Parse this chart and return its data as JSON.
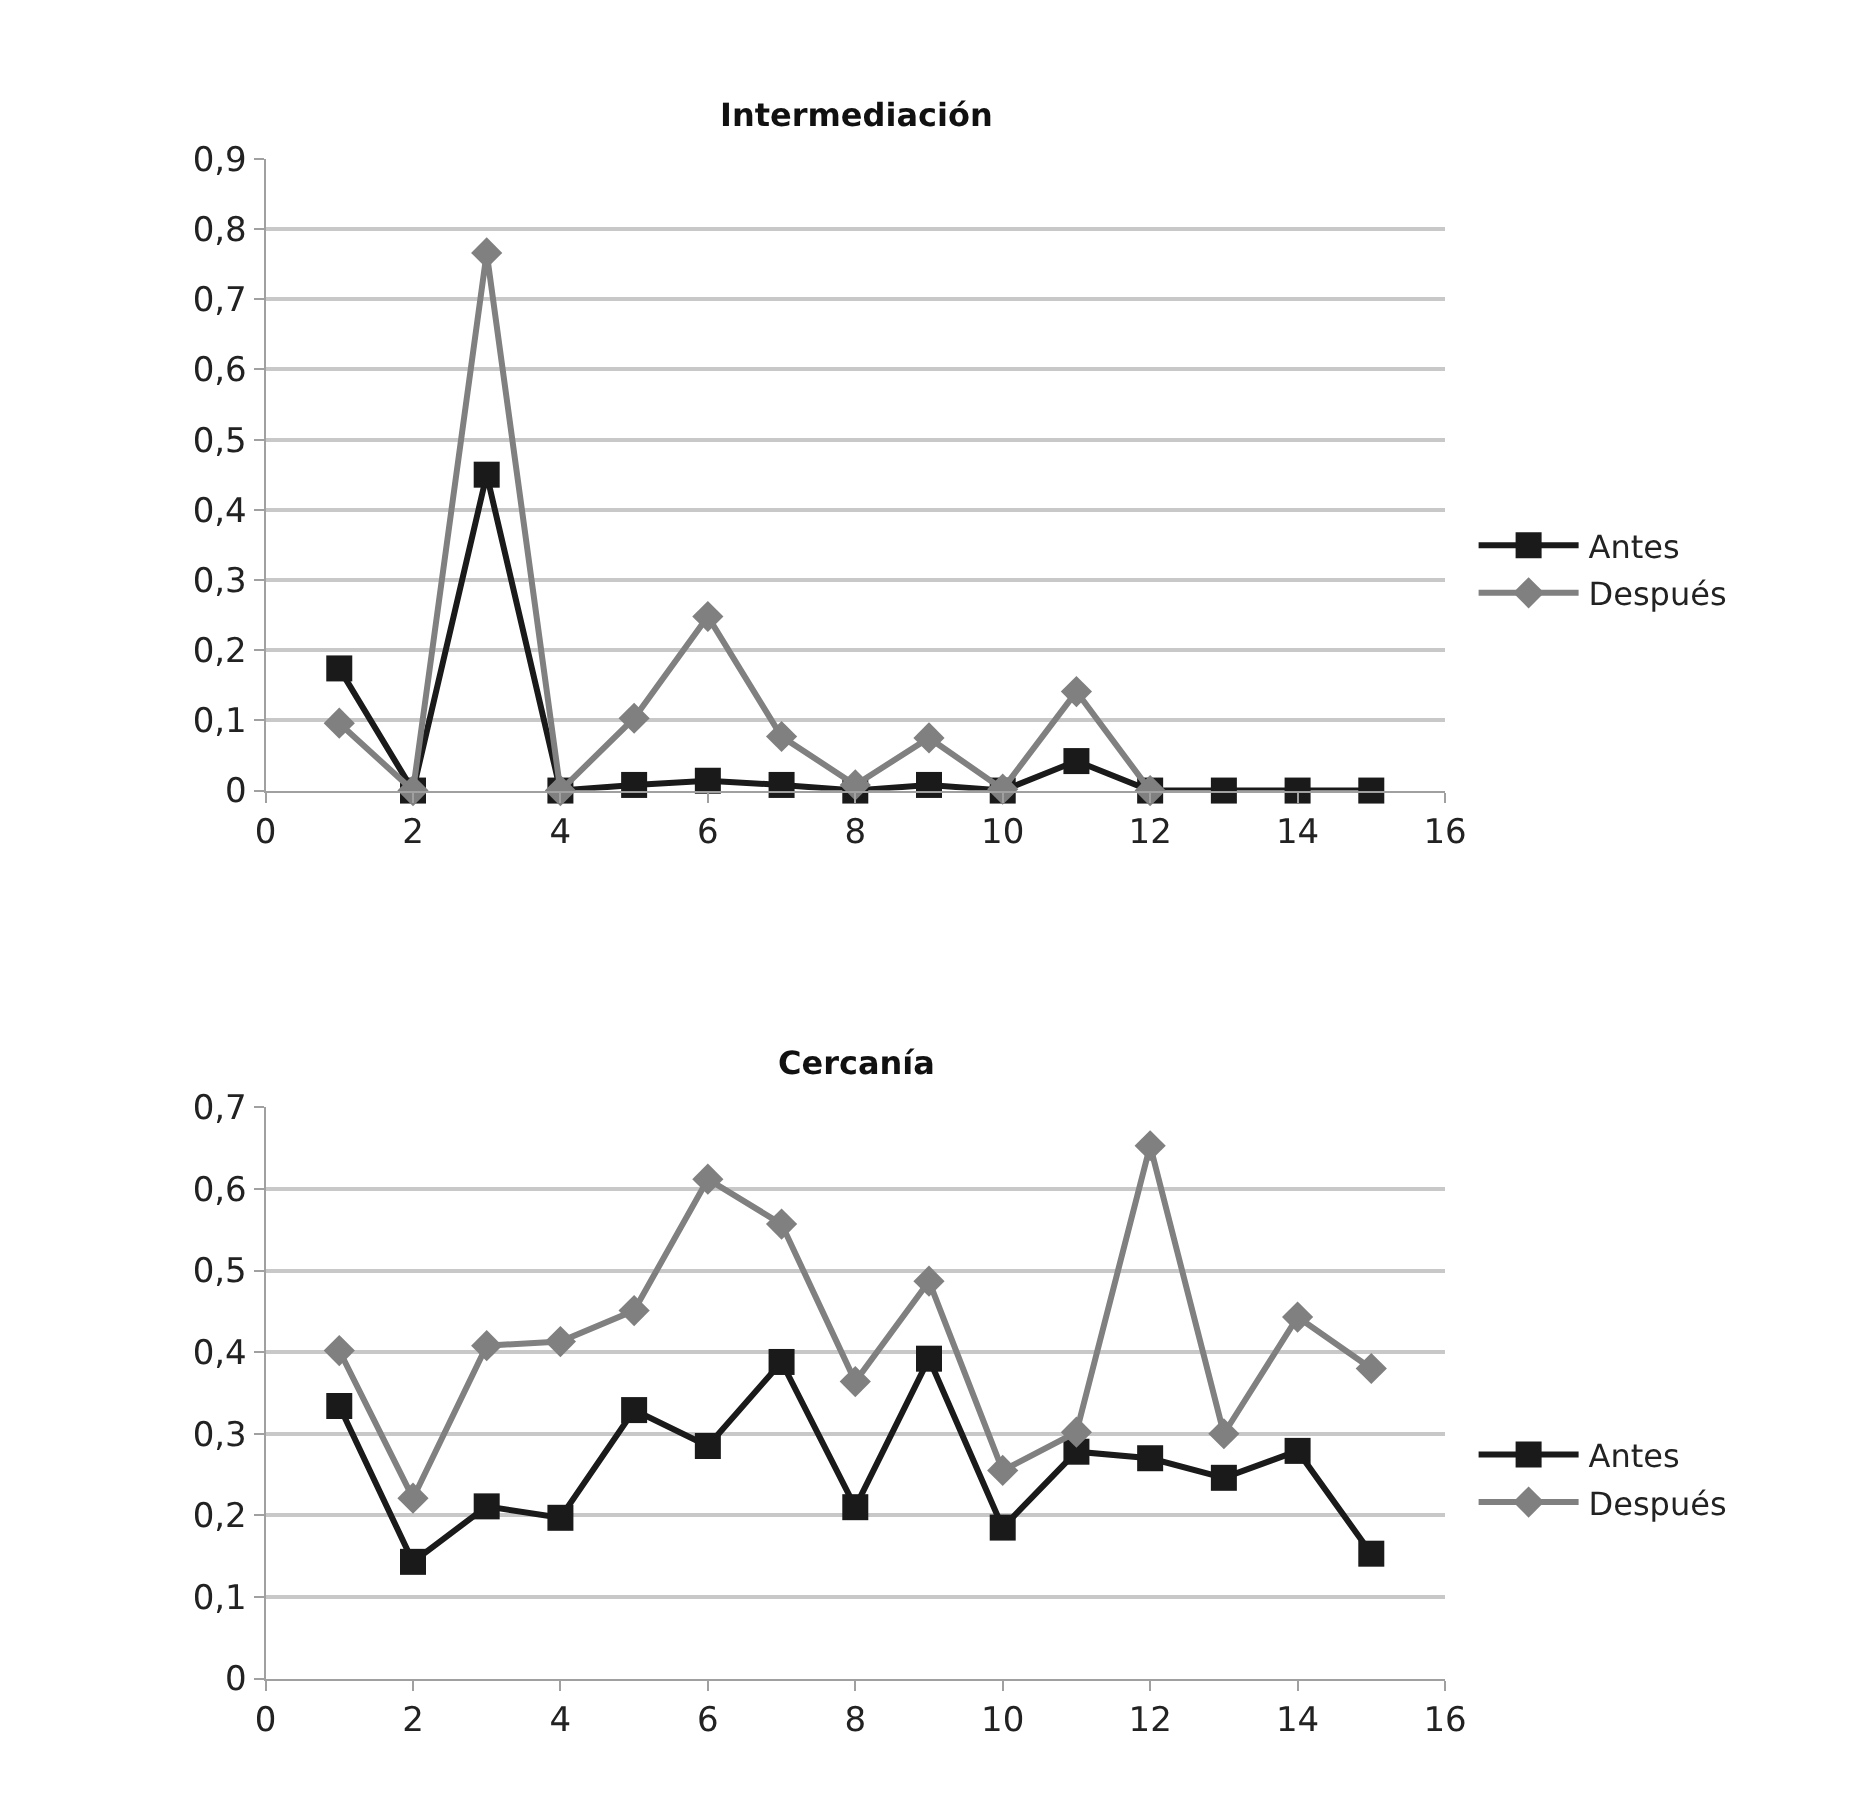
{
  "chart_data": [
    {
      "type": "line",
      "title": "Intermediación",
      "x": [
        1,
        2,
        3,
        4,
        5,
        6,
        7,
        8,
        9,
        10,
        11,
        12,
        13,
        14,
        15
      ],
      "series": [
        {
          "name": "Antes",
          "color": "#1a1a1a",
          "marker": "square",
          "values": [
            0.174,
            0,
            0.45,
            0,
            0.008,
            0.014,
            0.008,
            0,
            0.008,
            0,
            0.042,
            0,
            0,
            0,
            0
          ]
        },
        {
          "name": "Después",
          "color": "#808080",
          "marker": "diamond",
          "values": [
            0.096,
            0,
            0.766,
            0,
            0.103,
            0.248,
            0.077,
            0.008,
            0.075,
            0.002,
            0.141,
            0,
            null,
            null,
            null
          ]
        }
      ],
      "xlim": [
        0,
        16
      ],
      "xticks": [
        0,
        2,
        4,
        6,
        8,
        10,
        12,
        14,
        16
      ],
      "ylim": [
        0,
        0.9
      ],
      "yticks": [
        0,
        {
          "value": 0.1,
          "label": "0,1"
        },
        {
          "value": 0.2,
          "label": "0,2"
        },
        {
          "value": 0.3,
          "label": "0,3"
        },
        {
          "value": 0.4,
          "label": "0,4"
        },
        {
          "value": 0.5,
          "label": "0,5"
        },
        {
          "value": 0.6,
          "label": "0,6"
        },
        {
          "value": 0.7,
          "label": "0,7"
        },
        {
          "value": 0.8,
          "label": "0,8"
        },
        {
          "value": 0.9,
          "label": "0,9"
        }
      ],
      "grid": "y",
      "legend": "right",
      "line_style": "solid"
    },
    {
      "type": "line",
      "title": "Cercanía",
      "x": [
        1,
        2,
        3,
        4,
        5,
        6,
        7,
        8,
        9,
        10,
        11,
        12,
        13,
        14,
        15
      ],
      "series": [
        {
          "name": "Antes",
          "color": "#1a1a1a",
          "marker": "square",
          "values": [
            0.334,
            0.143,
            0.211,
            0.197,
            0.329,
            0.285,
            0.388,
            0.21,
            0.392,
            0.185,
            0.278,
            0.27,
            0.246,
            0.279,
            0.153
          ]
        },
        {
          "name": "Después",
          "color": "#808080",
          "marker": "diamond",
          "values": [
            0.402,
            0.221,
            0.408,
            0.413,
            0.451,
            0.612,
            0.557,
            0.364,
            0.487,
            0.255,
            0.302,
            0.653,
            0.3,
            0.443,
            0.38
          ]
        }
      ],
      "xlim": [
        0,
        16
      ],
      "xticks": [
        0,
        2,
        4,
        6,
        8,
        10,
        12,
        14,
        16
      ],
      "ylim": [
        0,
        0.7
      ],
      "yticks": [
        0,
        {
          "value": 0.1,
          "label": "0,1"
        },
        {
          "value": 0.2,
          "label": "0,2"
        },
        {
          "value": 0.3,
          "label": "0,3"
        },
        {
          "value": 0.4,
          "label": "0,4"
        },
        {
          "value": 0.5,
          "label": "0,5"
        },
        {
          "value": 0.6,
          "label": "0,6"
        },
        {
          "value": 0.7,
          "label": "0,7"
        }
      ],
      "grid": "y",
      "legend": "right",
      "line_style": "solid"
    }
  ]
}
